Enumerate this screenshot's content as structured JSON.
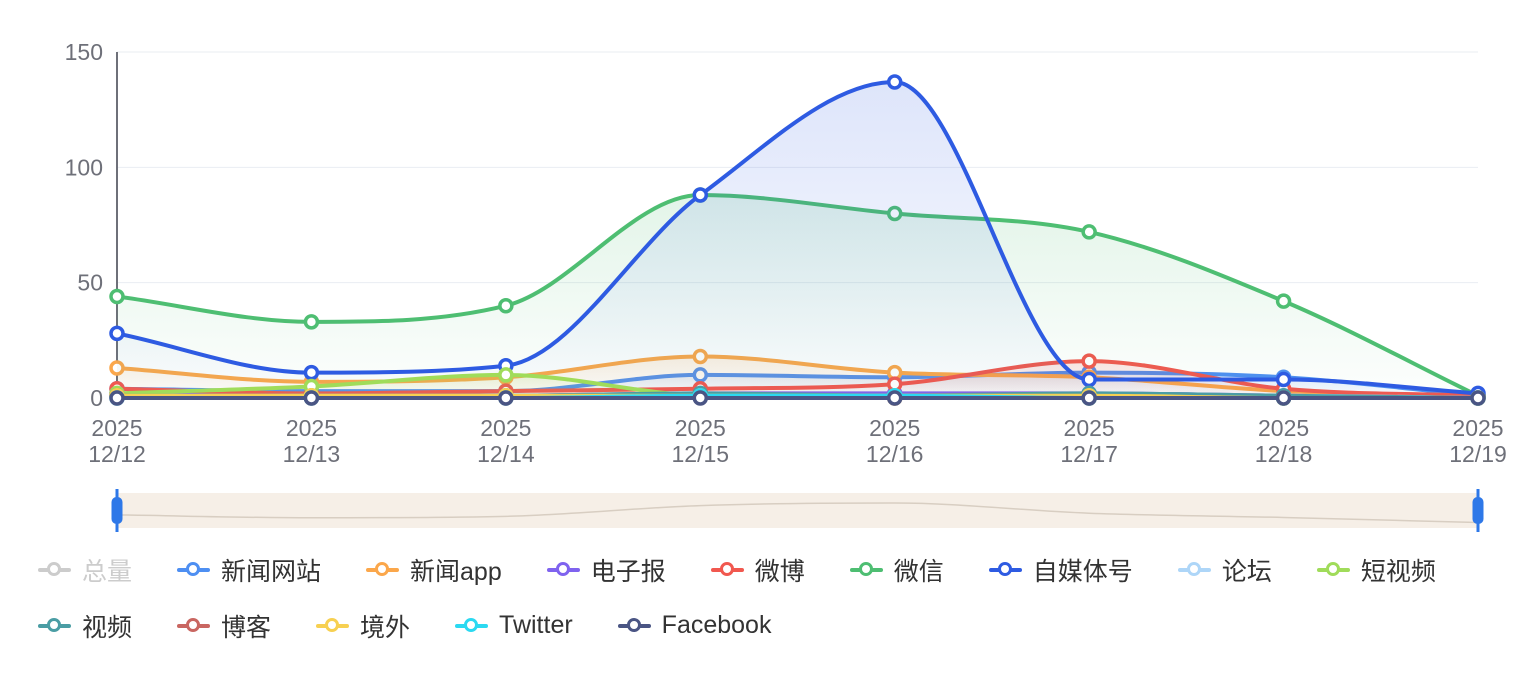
{
  "chart_data": {
    "type": "line",
    "title": "",
    "smooth": true,
    "grid": true,
    "legend_position": "bottom",
    "x_year": "2025",
    "x_dates": [
      "12/12",
      "12/13",
      "12/14",
      "12/15",
      "12/16",
      "12/17",
      "12/18",
      "12/19"
    ],
    "ylim": [
      0,
      150
    ],
    "yticks": [
      0,
      50,
      100,
      150
    ],
    "series": [
      {
        "name": "总量",
        "color": "#CCCCCC",
        "selected": false,
        "values": []
      },
      {
        "name": "新闻网站",
        "color": "#4E8FF2",
        "selected": true,
        "values": [
          4,
          3,
          3,
          10,
          9,
          11,
          9,
          1
        ]
      },
      {
        "name": "新闻app",
        "color": "#FBA74B",
        "selected": true,
        "values": [
          13,
          7,
          9,
          18,
          11,
          9,
          3,
          1
        ]
      },
      {
        "name": "电子报",
        "color": "#7F63EF",
        "selected": true,
        "values": [
          2,
          1,
          1,
          2,
          2,
          2,
          1,
          0
        ]
      },
      {
        "name": "微博",
        "color": "#F1584F",
        "selected": true,
        "values": [
          4,
          2,
          3,
          4,
          6,
          16,
          4,
          1
        ]
      },
      {
        "name": "微信",
        "color": "#4EBE72",
        "selected": true,
        "values": [
          44,
          33,
          40,
          88,
          80,
          72,
          42,
          1
        ]
      },
      {
        "name": "自媒体号",
        "color": "#2E5BE2",
        "selected": true,
        "values": [
          28,
          11,
          14,
          88,
          137,
          8,
          8,
          2
        ]
      },
      {
        "name": "论坛",
        "color": "#AED6F8",
        "selected": true,
        "values": [
          1,
          1,
          1,
          1,
          1,
          1,
          1,
          0
        ]
      },
      {
        "name": "短视频",
        "color": "#A0DC5A",
        "selected": true,
        "values": [
          2,
          5,
          10,
          1,
          0,
          0,
          0,
          0
        ]
      },
      {
        "name": "视频",
        "color": "#4A9DA4",
        "selected": true,
        "values": [
          1,
          1,
          1,
          2,
          1,
          2,
          1,
          0
        ]
      },
      {
        "name": "博客",
        "color": "#C96661",
        "selected": true,
        "values": [
          1,
          0,
          0,
          1,
          0,
          0,
          0,
          0
        ]
      },
      {
        "name": "境外",
        "color": "#F7D051",
        "selected": true,
        "values": [
          1,
          1,
          1,
          1,
          1,
          1,
          0,
          0
        ]
      },
      {
        "name": "Twitter",
        "color": "#2BD9F1",
        "selected": true,
        "values": [
          0,
          0,
          0,
          1,
          1,
          0,
          0,
          0
        ]
      },
      {
        "name": "Facebook",
        "color": "#4A5584",
        "selected": true,
        "values": [
          0,
          0,
          0,
          0,
          0,
          0,
          0,
          0
        ]
      }
    ]
  },
  "colors": {
    "axis_label": "#6E7079",
    "axis_line": "#6E7079",
    "grid_line": "#EAEDF2",
    "legend_text": "#333333",
    "legend_disabled": "#CCCCCC",
    "slider_bg": "#F6EFE7",
    "slider_handle": "#2E78E8",
    "slider_shadow_line": "#D8CEC2"
  }
}
